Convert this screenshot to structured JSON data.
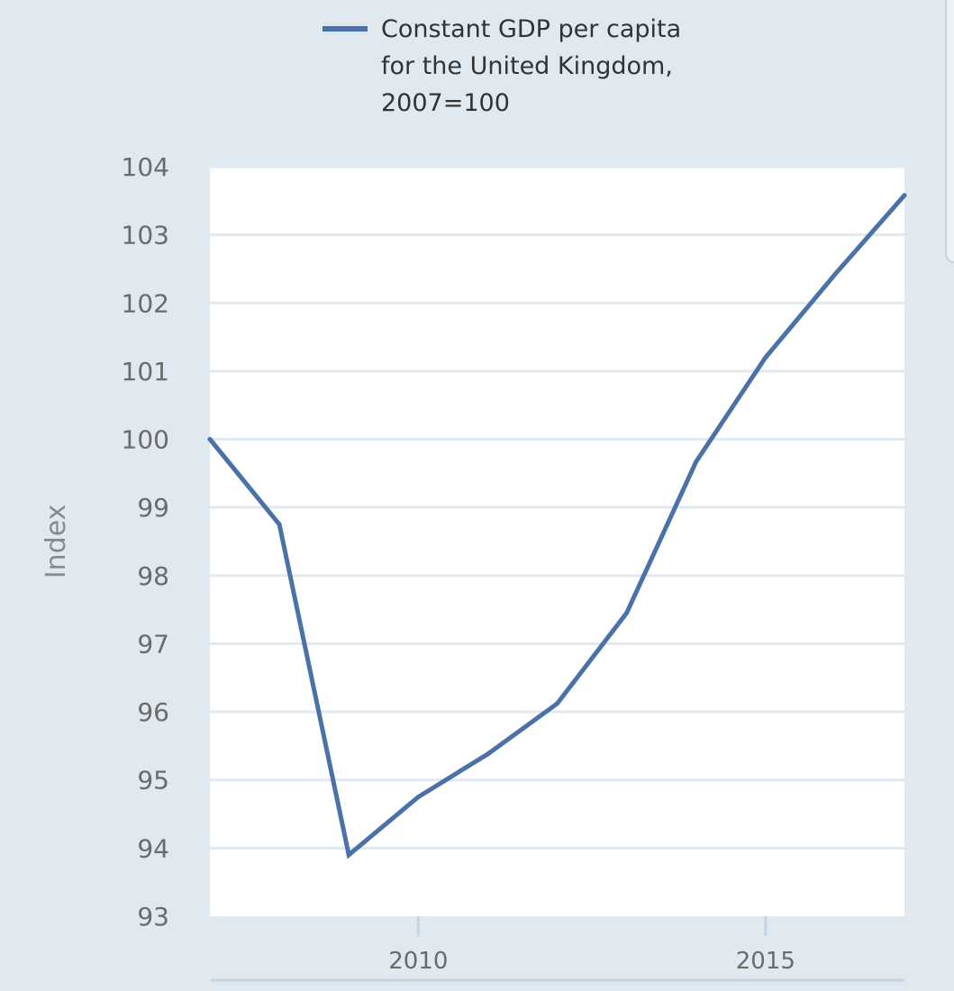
{
  "chart_data": {
    "type": "line",
    "title": "",
    "legend": {
      "lines": [
        "Constant GDP per capita",
        "for the United Kingdom,",
        "2007=100"
      ],
      "placement": "top-center"
    },
    "xlabel": "",
    "ylabel": "Index",
    "x": [
      2007,
      2008,
      2009,
      2010,
      2011,
      2012,
      2013,
      2014,
      2015,
      2016,
      2017
    ],
    "series": [
      {
        "name": "Constant GDP per capita for the United Kingdom, 2007=100",
        "color": "#4a72a8",
        "values": [
          100.0,
          98.75,
          93.9,
          94.75,
          95.38,
          96.12,
          97.45,
          99.67,
          101.2,
          102.42,
          103.58
        ]
      }
    ],
    "xlim": [
      2007,
      2017
    ],
    "ylim": [
      93,
      104
    ],
    "x_ticks": [
      2010,
      2015
    ],
    "x_tick_labels": [
      "2010",
      "2015"
    ],
    "y_ticks": [
      93,
      94,
      95,
      96,
      97,
      98,
      99,
      100,
      101,
      102,
      103,
      104
    ],
    "y_tick_labels": [
      "93",
      "94",
      "95",
      "96",
      "97",
      "98",
      "99",
      "100",
      "101",
      "102",
      "103",
      "104"
    ],
    "grid": true
  },
  "colors": {
    "background": "#e1e9f0",
    "plot_area": "#ffffff",
    "gridline": "#e1e9f0",
    "axis_line": "#c5d3e2",
    "line": "#4a72a8"
  }
}
